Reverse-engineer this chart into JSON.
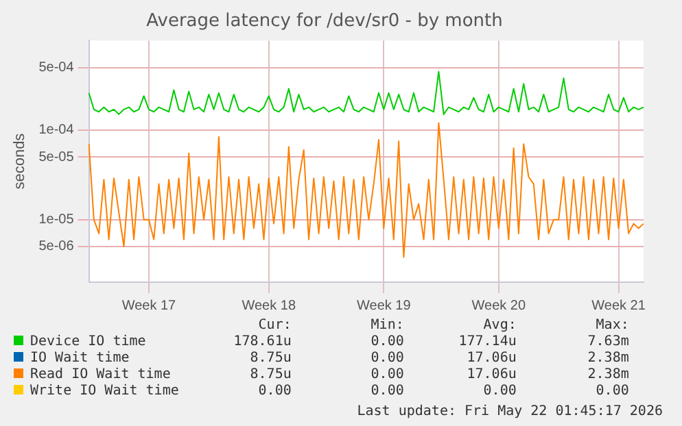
{
  "chart_data": {
    "type": "line",
    "title": "Average latency for /dev/sr0 - by month",
    "ylabel": "seconds",
    "log": "y",
    "grid": true,
    "legend": "bottom",
    "marker": "none",
    "line_style": "solid",
    "categories": [
      null,
      null,
      null,
      null,
      null,
      null,
      null,
      null,
      null,
      null,
      null,
      null,
      "Week 17",
      null,
      null,
      null,
      null,
      null,
      null,
      null,
      null,
      null,
      null,
      null,
      null,
      null,
      null,
      null,
      null,
      null,
      null,
      null,
      null,
      null,
      null,
      null,
      "Week 18",
      null,
      null,
      null,
      null,
      null,
      null,
      null,
      null,
      null,
      null,
      null,
      null,
      null,
      null,
      null,
      null,
      null,
      null,
      null,
      null,
      null,
      null,
      "Week 19",
      null,
      null,
      null,
      null,
      null,
      null,
      null,
      null,
      null,
      null,
      null,
      null,
      null,
      null,
      null,
      null,
      null,
      null,
      null,
      null,
      null,
      null,
      "Week 20",
      null,
      null,
      null,
      null,
      null,
      null,
      null,
      null,
      null,
      null,
      null,
      null,
      null,
      null,
      null,
      null,
      null,
      null,
      null,
      null,
      null,
      null,
      null,
      "Week 21",
      null,
      null,
      null,
      null,
      null
    ],
    "ylim": [
      2e-06,
      0.001
    ],
    "yticks": [
      {
        "value": 5e-06,
        "label": "5e-06"
      },
      {
        "value": 1e-05,
        "label": "1e-05"
      },
      {
        "value": 5e-05,
        "label": "5e-05"
      },
      {
        "value": 0.0001,
        "label": "1e-04"
      },
      {
        "value": 0.0005,
        "label": "5e-04"
      }
    ],
    "series": [
      {
        "name": "Device IO time",
        "color": "#00cc00",
        "values": [
          0.00026,
          0.00017,
          0.00016,
          0.00018,
          0.00016,
          0.00017,
          0.00015,
          0.00017,
          0.00018,
          0.00016,
          0.00017,
          0.00024,
          0.00017,
          0.00016,
          0.00018,
          0.00017,
          0.00016,
          0.00028,
          0.00017,
          0.00016,
          0.00027,
          0.00017,
          0.00018,
          0.00016,
          0.00025,
          0.00017,
          0.00026,
          0.00017,
          0.00016,
          0.00025,
          0.00017,
          0.00016,
          0.00018,
          0.00017,
          0.00016,
          0.00018,
          0.00024,
          0.00017,
          0.00016,
          0.00018,
          0.00029,
          0.00016,
          0.00025,
          0.00017,
          0.00018,
          0.00016,
          0.00017,
          0.00018,
          0.00016,
          0.00017,
          0.00018,
          0.00016,
          0.00024,
          0.00017,
          0.00016,
          0.00018,
          0.00017,
          0.00016,
          0.00026,
          0.00017,
          0.00026,
          0.00017,
          0.00025,
          0.00017,
          0.00016,
          0.00026,
          0.00016,
          0.00018,
          0.00017,
          0.00016,
          0.00045,
          0.00015,
          0.00018,
          0.00017,
          0.00016,
          0.00018,
          0.00017,
          0.00023,
          0.00017,
          0.00016,
          0.00025,
          0.00016,
          0.00018,
          0.00017,
          0.00016,
          0.00029,
          0.00016,
          0.00033,
          0.00017,
          0.00018,
          0.00016,
          0.00025,
          0.00016,
          0.00017,
          0.00018,
          0.00038,
          0.00017,
          0.00016,
          0.00018,
          0.00017,
          0.00016,
          0.00018,
          0.00017,
          0.00016,
          0.00025,
          0.00017,
          0.00016,
          0.00023,
          0.00016,
          0.00018,
          0.00017,
          0.00018
        ]
      },
      {
        "name": "IO Wait time",
        "color": "#0066b3",
        "values": [
          null,
          null,
          null,
          null,
          null,
          null,
          null,
          null,
          null,
          null,
          null,
          null,
          null,
          null,
          null,
          null,
          null,
          null,
          null,
          null,
          null,
          null,
          null,
          null,
          null,
          null,
          null,
          null,
          null,
          null,
          null,
          null,
          null,
          null,
          null,
          null,
          null,
          null,
          null,
          null,
          null,
          null,
          null,
          null,
          null,
          null,
          null,
          null,
          null,
          null,
          null,
          null,
          null,
          null,
          null,
          null,
          null,
          null,
          null,
          null,
          null,
          null,
          null,
          null,
          null,
          null,
          null,
          null,
          null,
          null,
          null,
          null,
          null,
          null,
          null,
          null,
          null,
          null,
          null,
          null,
          null,
          null,
          null,
          null,
          null,
          null,
          null,
          null,
          null,
          null,
          null,
          null,
          null,
          null,
          null,
          null,
          null,
          null,
          null,
          null,
          null,
          null,
          null,
          null,
          null,
          null,
          null,
          null,
          null,
          null,
          null,
          null
        ]
      },
      {
        "name": "Read IO Wait time",
        "color": "#ff8000",
        "values": [
          7e-05,
          1e-05,
          7e-06,
          2.8e-05,
          6e-06,
          2.9e-05,
          1.2e-05,
          5e-06,
          2.8e-05,
          6e-06,
          3e-05,
          1e-05,
          1e-05,
          6e-06,
          2.5e-05,
          7e-06,
          2.8e-05,
          8e-06,
          2.9e-05,
          6e-06,
          5.5e-05,
          7e-06,
          3e-05,
          1e-05,
          2.8e-05,
          6e-06,
          8.4e-05,
          6e-06,
          3e-05,
          7e-06,
          2.8e-05,
          6e-06,
          3e-05,
          8e-06,
          2.5e-05,
          6e-06,
          2.9e-05,
          9e-06,
          3e-05,
          7e-06,
          6.5e-05,
          8e-06,
          2.8e-05,
          6e-05,
          6e-06,
          2.9e-05,
          7e-06,
          3e-05,
          8e-06,
          2.7e-05,
          6e-06,
          3e-05,
          7e-06,
          2.8e-05,
          6e-06,
          3e-05,
          1e-05,
          2.5e-05,
          7.8e-05,
          8e-06,
          2.9e-05,
          6e-06,
          7.5e-05,
          3.8e-06,
          2.5e-05,
          1e-05,
          1.5e-05,
          6e-06,
          2.8e-05,
          6e-06,
          0.00012,
          2.8e-05,
          6e-06,
          3e-05,
          7e-06,
          2.8e-05,
          6e-06,
          3e-05,
          7e-06,
          2.9e-05,
          6e-06,
          3e-05,
          8e-06,
          2.8e-05,
          6e-06,
          6.3e-05,
          7e-06,
          7e-05,
          3e-05,
          2.5e-05,
          6e-06,
          2.8e-05,
          7e-06,
          1e-05,
          1e-05,
          3e-05,
          6e-06,
          2.8e-05,
          7e-06,
          3e-05,
          6e-06,
          2.8e-05,
          7e-06,
          3e-05,
          6e-06,
          2.9e-05,
          8e-06,
          2.8e-05,
          7e-06,
          9e-06,
          8e-06,
          9e-06
        ]
      },
      {
        "name": "Write IO Wait time",
        "color": "#ffcc00",
        "values": [
          null,
          null,
          null,
          null,
          null,
          null,
          null,
          null,
          null,
          null,
          null,
          null,
          null,
          null,
          null,
          null,
          null,
          null,
          null,
          null,
          null,
          null,
          null,
          null,
          null,
          null,
          null,
          null,
          null,
          null,
          null,
          null,
          null,
          null,
          null,
          null,
          null,
          null,
          null,
          null,
          null,
          null,
          null,
          null,
          null,
          null,
          null,
          null,
          null,
          null,
          null,
          null,
          null,
          null,
          null,
          null,
          null,
          null,
          null,
          null,
          null,
          null,
          null,
          null,
          null,
          null,
          null,
          null,
          null,
          null,
          null,
          null,
          null,
          null,
          null,
          null,
          null,
          null,
          null,
          null,
          null,
          null,
          null,
          null,
          null,
          null,
          null,
          null,
          null,
          null,
          null,
          null,
          null,
          null,
          null,
          null,
          null,
          null,
          null,
          null,
          null,
          null,
          null,
          null,
          null,
          null,
          null,
          null,
          null,
          null,
          null,
          null
        ]
      }
    ],
    "annotations": [
      "Cur:",
      "Min:",
      "Avg:",
      "Max:",
      "178.61u",
      "0.00",
      "177.14u",
      "7.63m",
      "8.75u",
      "0.00",
      "17.06u",
      "2.38m",
      "8.75u",
      "0.00",
      "17.06u",
      "2.38m",
      "0.00",
      "0.00",
      "0.00",
      "0.00",
      "Last update: Fri May 22 01:45:17 2026"
    ]
  }
}
